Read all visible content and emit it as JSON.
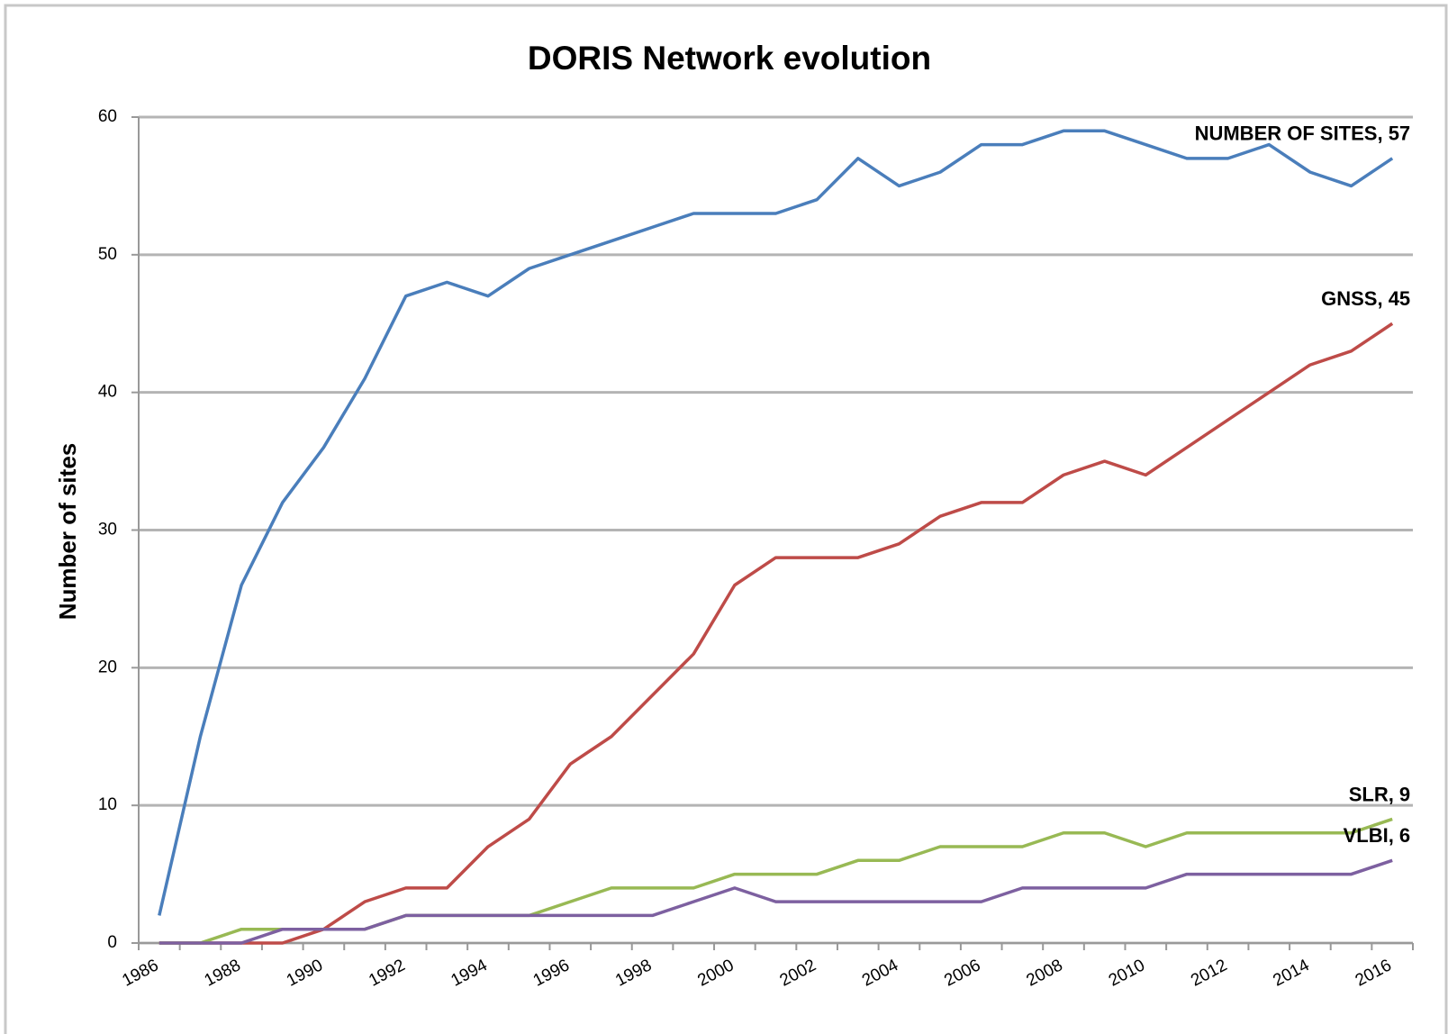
{
  "chart_data": {
    "type": "line",
    "title": "DORIS Network evolution",
    "y_label": "Number of sites",
    "categories": [
      "1986",
      null,
      "1988",
      null,
      "1990",
      null,
      "1992",
      null,
      "1994",
      null,
      "1996",
      null,
      "1998",
      null,
      "2000",
      null,
      "2002",
      null,
      "2004",
      null,
      "2006",
      null,
      "2008",
      null,
      "2010",
      null,
      "2012",
      null,
      "2014",
      null,
      "2016"
    ],
    "series": [
      {
        "label": "NUMBER OF SITES, 57",
        "color": "#4a7ebb",
        "values": [
          2,
          15,
          26,
          32,
          36,
          41,
          47,
          48,
          47,
          49,
          50,
          51,
          52,
          53,
          53,
          53,
          54,
          57,
          55,
          56,
          58,
          58,
          59,
          59,
          58,
          57,
          57,
          58,
          56,
          55,
          57
        ]
      },
      {
        "label": "GNSS, 45",
        "color": "#be4b48",
        "values": [
          0,
          0,
          0,
          0,
          1,
          3,
          4,
          4,
          7,
          9,
          13,
          15,
          18,
          21,
          26,
          28,
          28,
          28,
          29,
          31,
          32,
          32,
          34,
          35,
          34,
          36,
          38,
          40,
          42,
          43,
          45
        ]
      },
      {
        "label": "SLR, 9",
        "color": "#98b954",
        "values": [
          0,
          0,
          1,
          1,
          1,
          1,
          2,
          2,
          2,
          2,
          3,
          4,
          4,
          4,
          5,
          5,
          5,
          6,
          6,
          7,
          7,
          7,
          8,
          8,
          7,
          8,
          8,
          8,
          8,
          8,
          9
        ]
      },
      {
        "label": "VLBI, 6",
        "color": "#7d60a0",
        "values": [
          0,
          0,
          0,
          1,
          1,
          1,
          2,
          2,
          2,
          2,
          2,
          2,
          2,
          3,
          4,
          3,
          3,
          3,
          3,
          3,
          3,
          4,
          4,
          4,
          4,
          5,
          5,
          5,
          5,
          5,
          6
        ]
      }
    ],
    "ylim": [
      0,
      60
    ],
    "yticks": [
      0,
      10,
      20,
      30,
      40,
      50,
      60
    ],
    "grid": true
  }
}
